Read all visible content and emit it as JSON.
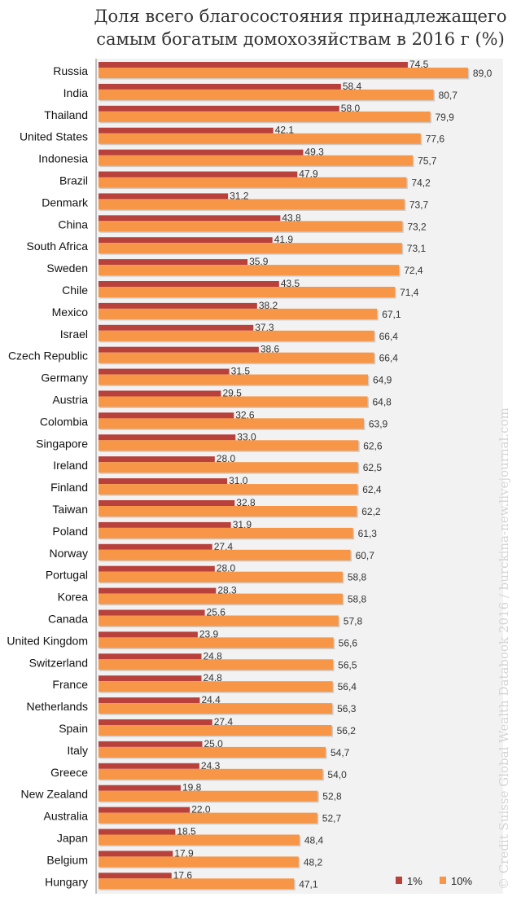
{
  "chart_data": {
    "type": "bar",
    "orientation": "horizontal",
    "title_lines": [
      "Доля всего благосостояния принадлежащего",
      "самым богатым домохозяйствам в 2016 г (%)"
    ],
    "categories": [
      "Russia",
      "India",
      "Thailand",
      "United States",
      "Indonesia",
      "Brazil",
      "Denmark",
      "China",
      "South Africa",
      "Sweden",
      "Chile",
      "Mexico",
      "Israel",
      "Czech Republic",
      "Germany",
      "Austria",
      "Colombia",
      "Singapore",
      "Ireland",
      "Finland",
      "Taiwan",
      "Poland",
      "Norway",
      "Portugal",
      "Korea",
      "Canada",
      "United Kingdom",
      "Switzerland",
      "France",
      "Netherlands",
      "Spain",
      "Italy",
      "Greece",
      "New Zealand",
      "Australia",
      "Japan",
      "Belgium",
      "Hungary"
    ],
    "series": [
      {
        "name": "1%",
        "color": "#b8413c",
        "values": [
          74.5,
          58.4,
          58.0,
          42.1,
          49.3,
          47.9,
          31.2,
          43.8,
          41.9,
          35.9,
          43.5,
          38.2,
          37.3,
          38.6,
          31.5,
          29.5,
          32.6,
          33.0,
          28.0,
          31.0,
          32.8,
          31.9,
          27.4,
          28.0,
          28.3,
          25.6,
          23.9,
          24.8,
          24.8,
          24.4,
          27.4,
          25.0,
          24.3,
          19.8,
          22.0,
          18.5,
          17.9,
          17.6
        ],
        "labels": [
          "74,5",
          "58,4",
          "58,0",
          "42,1",
          "49,3",
          "47,9",
          "31,2",
          "43,8",
          "41,9",
          "35,9",
          "43,5",
          "38,2",
          "37,3",
          "38,6",
          "31,5",
          "29,5",
          "32,6",
          "33,0",
          "28,0",
          "31,0",
          "32,8",
          "31,9",
          "27,4",
          "28,0",
          "28,3",
          "25,6",
          "23,9",
          "24,8",
          "24,8",
          "24,4",
          "27,4",
          "25,0",
          "24,3",
          "19,8",
          "22,0",
          "18,5",
          "17,9",
          "17,6"
        ]
      },
      {
        "name": "10%",
        "color": "#f79646",
        "values": [
          89.0,
          80.7,
          79.9,
          77.6,
          75.7,
          74.2,
          73.7,
          73.2,
          73.1,
          72.4,
          71.4,
          67.1,
          66.4,
          66.4,
          64.9,
          64.8,
          63.9,
          62.6,
          62.5,
          62.4,
          62.2,
          61.3,
          60.7,
          58.8,
          58.8,
          57.8,
          56.6,
          56.5,
          56.4,
          56.3,
          56.2,
          54.7,
          54.0,
          52.8,
          52.7,
          48.4,
          48.2,
          47.1
        ],
        "labels": [
          "89,0",
          "80,7",
          "79,9",
          "77,6",
          "75,7",
          "74,2",
          "73,7",
          "73,2",
          "73,1",
          "72,4",
          "71,4",
          "67,1",
          "66,4",
          "66,4",
          "64,9",
          "64,8",
          "63,9",
          "62,6",
          "62,5",
          "62,4",
          "62,2",
          "61,3",
          "60,7",
          "58,8",
          "58,8",
          "57,8",
          "56,6",
          "56,5",
          "56,4",
          "56,3",
          "56,2",
          "54,7",
          "54,0",
          "52,8",
          "52,7",
          "48,4",
          "48,2",
          "47,1"
        ]
      }
    ],
    "xlim": [
      0,
      100
    ],
    "grid": false,
    "legend_position": "bottom-right"
  },
  "watermark": "© Credit Suisse Global Wealth Databook 2016 / burckina-new.livejournal.com",
  "colors": {
    "plot_background": "#f2f2f2",
    "axis": "#888888"
  }
}
